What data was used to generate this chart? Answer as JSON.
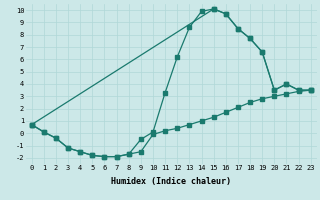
{
  "xlabel": "Humidex (Indice chaleur)",
  "bg_color": "#cce8e8",
  "line_color": "#1a7a6e",
  "line1_x": [
    0,
    1,
    2,
    3,
    4,
    5,
    6,
    7,
    8,
    9,
    10,
    11,
    12,
    13,
    14,
    15,
    16,
    17,
    18,
    19,
    20,
    21,
    22,
    23
  ],
  "line1_y": [
    0.7,
    0.1,
    -0.4,
    -1.2,
    -1.5,
    -1.8,
    -1.9,
    -1.9,
    -1.7,
    -0.5,
    0.1,
    3.3,
    6.2,
    8.6,
    9.9,
    10.1,
    9.7,
    8.5,
    7.7,
    6.6,
    3.5,
    4.0,
    3.5,
    3.5
  ],
  "line2_x": [
    0,
    1,
    2,
    3,
    4,
    5,
    6,
    7,
    8,
    9,
    10,
    11,
    12,
    13,
    14,
    15,
    16,
    17,
    18,
    19,
    20,
    21,
    22,
    23
  ],
  "line2_y": [
    0.7,
    0.1,
    -0.4,
    -1.2,
    -1.5,
    -1.8,
    -1.9,
    -1.9,
    -1.7,
    -1.5,
    -0.1,
    0.2,
    0.4,
    0.7,
    1.0,
    1.3,
    1.7,
    2.1,
    2.5,
    2.8,
    3.0,
    3.2,
    3.4,
    3.5
  ],
  "line3_x": [
    0,
    15,
    16,
    17,
    18,
    19,
    20,
    21,
    22,
    23
  ],
  "line3_y": [
    0.7,
    10.1,
    9.7,
    8.5,
    7.7,
    6.6,
    3.5,
    4.0,
    3.5,
    3.5
  ],
  "xlim": [
    -0.5,
    23.5
  ],
  "ylim": [
    -2.5,
    10.5
  ],
  "yticks": [
    -2,
    -1,
    0,
    1,
    2,
    3,
    4,
    5,
    6,
    7,
    8,
    9,
    10
  ],
  "xticks": [
    0,
    1,
    2,
    3,
    4,
    5,
    6,
    7,
    8,
    9,
    10,
    11,
    12,
    13,
    14,
    15,
    16,
    17,
    18,
    19,
    20,
    21,
    22,
    23
  ],
  "grid_color": "#b0d8d8",
  "tick_fontsize": 5,
  "xlabel_fontsize": 6
}
